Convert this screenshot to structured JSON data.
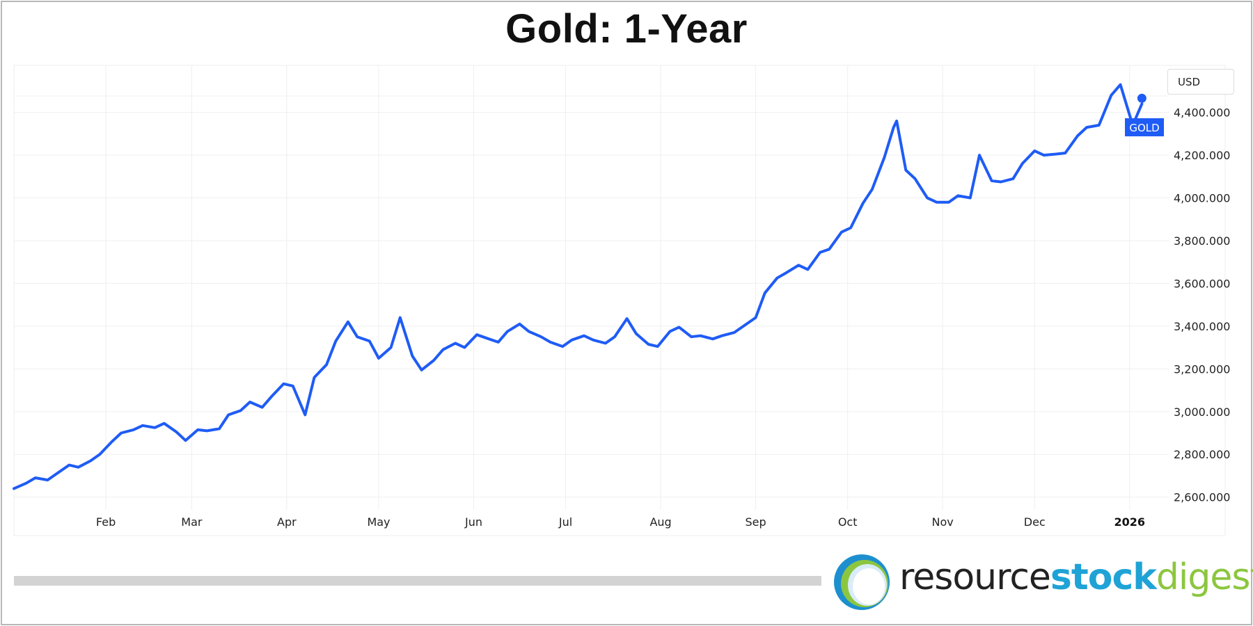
{
  "chart_data": {
    "type": "line",
    "title": "Gold: 1-Year",
    "currency": "USD",
    "series_label": "GOLD",
    "line_color": "#1f5cf5",
    "x_axis_labels": [
      "Feb",
      "Mar",
      "Apr",
      "May",
      "Jun",
      "Jul",
      "Aug",
      "Sep",
      "Oct",
      "Nov",
      "Dec",
      "2026"
    ],
    "y_ticks": [
      "2,600.000",
      "2,800.000",
      "3,000.000",
      "3,200.000",
      "3,400.000",
      "3,600.000",
      "3,800.000",
      "4,000.000",
      "4,200.000",
      "4,400.000"
    ],
    "ylim": [
      2420,
      4620
    ],
    "xlim": [
      "2025-01-02",
      "2026-01-14"
    ],
    "grid": true,
    "series": [
      {
        "x": [
          "2025-01-02",
          "2025-01-06",
          "2025-01-09",
          "2025-01-13",
          "2025-01-16",
          "2025-01-20",
          "2025-01-23",
          "2025-01-27",
          "2025-01-30",
          "2025-02-03",
          "2025-02-06",
          "2025-02-10",
          "2025-02-13",
          "2025-02-17",
          "2025-02-20",
          "2025-02-24",
          "2025-02-27",
          "2025-03-03",
          "2025-03-06",
          "2025-03-10",
          "2025-03-13",
          "2025-03-17",
          "2025-03-20",
          "2025-03-24",
          "2025-03-27",
          "2025-03-31",
          "2025-04-03",
          "2025-04-07",
          "2025-04-10",
          "2025-04-14",
          "2025-04-17",
          "2025-04-21",
          "2025-04-24",
          "2025-04-28",
          "2025-05-01",
          "2025-05-05",
          "2025-05-08",
          "2025-05-12",
          "2025-05-15",
          "2025-05-19",
          "2025-05-22",
          "2025-05-26",
          "2025-05-29",
          "2025-06-02",
          "2025-06-05",
          "2025-06-09",
          "2025-06-12",
          "2025-06-16",
          "2025-06-19",
          "2025-06-23",
          "2025-06-26",
          "2025-06-30",
          "2025-07-03",
          "2025-07-07",
          "2025-07-10",
          "2025-07-14",
          "2025-07-17",
          "2025-07-21",
          "2025-07-24",
          "2025-07-28",
          "2025-07-31",
          "2025-08-04",
          "2025-08-07",
          "2025-08-11",
          "2025-08-14",
          "2025-08-18",
          "2025-08-21",
          "2025-08-25",
          "2025-08-28",
          "2025-09-01",
          "2025-09-04",
          "2025-09-08",
          "2025-09-11",
          "2025-09-15",
          "2025-09-18",
          "2025-09-22",
          "2025-09-25",
          "2025-09-29",
          "2025-10-02",
          "2025-10-06",
          "2025-10-09",
          "2025-10-13",
          "2025-10-16",
          "2025-10-17",
          "2025-10-20",
          "2025-10-23",
          "2025-10-27",
          "2025-10-30",
          "2025-11-03",
          "2025-11-06",
          "2025-11-10",
          "2025-11-13",
          "2025-11-17",
          "2025-11-20",
          "2025-11-24",
          "2025-11-27",
          "2025-12-01",
          "2025-12-04",
          "2025-12-08",
          "2025-12-11",
          "2025-12-15",
          "2025-12-18",
          "2025-12-22",
          "2025-12-26",
          "2025-12-29",
          "2026-01-02",
          "2026-01-05"
        ],
        "values": [
          2640,
          2665,
          2690,
          2680,
          2710,
          2750,
          2740,
          2770,
          2800,
          2860,
          2900,
          2915,
          2935,
          2925,
          2945,
          2905,
          2865,
          2915,
          2910,
          2920,
          2985,
          3005,
          3045,
          3020,
          3070,
          3130,
          3120,
          2985,
          3160,
          3220,
          3330,
          3420,
          3350,
          3330,
          3250,
          3300,
          3440,
          3260,
          3195,
          3240,
          3290,
          3320,
          3300,
          3360,
          3345,
          3325,
          3375,
          3410,
          3375,
          3350,
          3325,
          3305,
          3335,
          3355,
          3335,
          3320,
          3350,
          3435,
          3365,
          3315,
          3305,
          3375,
          3395,
          3350,
          3355,
          3340,
          3355,
          3370,
          3400,
          3440,
          3555,
          3625,
          3650,
          3685,
          3665,
          3745,
          3760,
          3840,
          3860,
          3975,
          4040,
          4190,
          4330,
          4360,
          4130,
          4090,
          4000,
          3980,
          3980,
          4010,
          4000,
          4200,
          4080,
          4075,
          4090,
          4160,
          4220,
          4200,
          4205,
          4210,
          4290,
          4330,
          4340,
          4480,
          4530,
          4340,
          4440
        ]
      }
    ],
    "last_value_marker": true
  },
  "scrollbar": {
    "visible": true
  },
  "logo": {
    "part1": "resource",
    "part2": "stock",
    "part3": "digest"
  }
}
